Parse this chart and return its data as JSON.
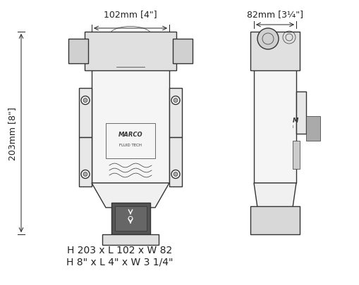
{
  "bg_color": "#ffffff",
  "line_color": "#333333",
  "dim_color": "#222222",
  "title_line1": "H 203 x L 102 x W 82",
  "title_line2": "H 8\" x L 4\" x W 3 1/4\"",
  "dim_top_left": "102mm [4\"]",
  "dim_top_right": "82mm [3¼\"]",
  "dim_left": "203mm [8\"]",
  "fig_width": 5.1,
  "fig_height": 4.06,
  "dpi": 100
}
